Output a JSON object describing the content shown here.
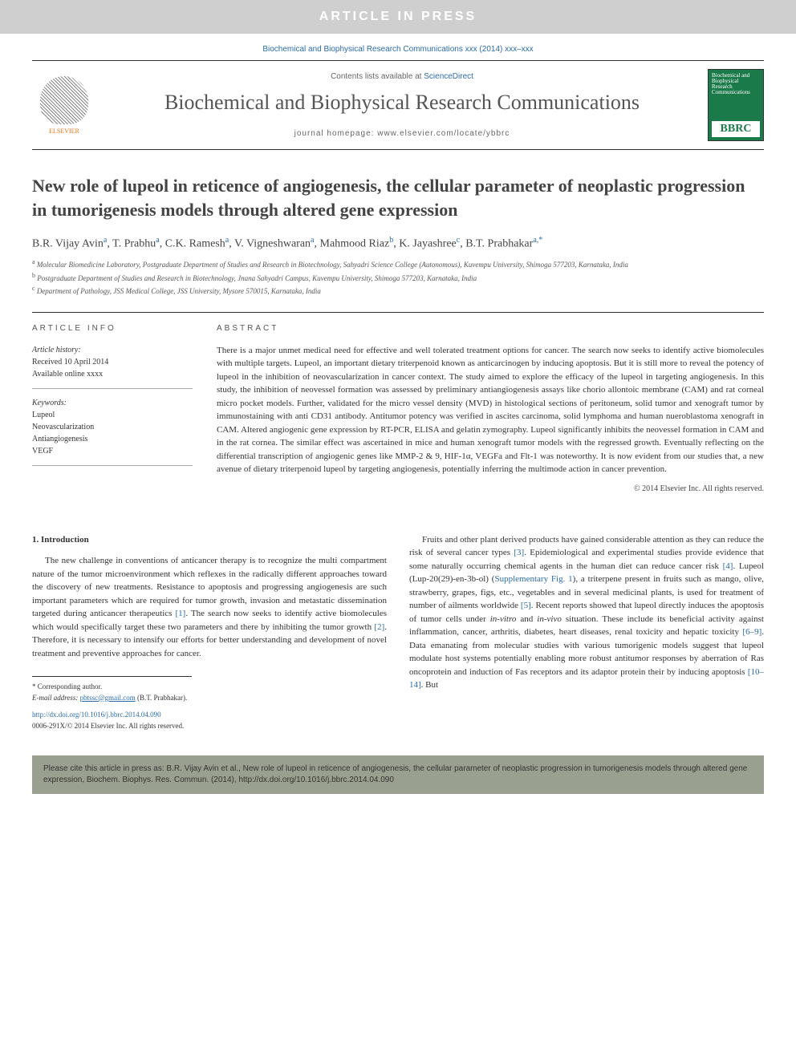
{
  "banner": "ARTICLE IN PRESS",
  "citation_top": "Biochemical and Biophysical Research Communications xxx (2014) xxx–xxx",
  "header": {
    "contents_prefix": "Contents lists available at ",
    "contents_link": "ScienceDirect",
    "journal": "Biochemical and Biophysical Research Communications",
    "homepage_prefix": "journal homepage: ",
    "homepage": "www.elsevier.com/locate/ybbrc",
    "elsevier_label": "ELSEVIER",
    "cover_label": "BBRC"
  },
  "title": "New role of lupeol in reticence of angiogenesis, the cellular parameter of neoplastic progression in tumorigenesis models through altered gene expression",
  "authors_html": "B.R. Vijay Avin<sup class='sup'>a</sup>, T. Prabhu<sup class='sup'>a</sup>, C.K. Ramesh<sup class='sup'>a</sup>, V. Vigneshwaran<sup class='sup'>a</sup>, Mahmood Riaz<sup class='sup'>b</sup>, K. Jayashree<sup class='sup'>c</sup>, B.T. Prabhakar<sup class='sup'>a,*</sup>",
  "affiliations": [
    {
      "sup": "a",
      "text": "Molecular Biomedicine Laboratory, Postgraduate Department of Studies and Research in Biotechnology, Sahyadri Science College (Autonomous), Kuvempu University, Shimoga 577203, Karnataka, India"
    },
    {
      "sup": "b",
      "text": "Postgraduate Department of Studies and Research in Biotechnology, Jnana Sahyadri Campus, Kuvempu University, Shimoga 577203, Karnataka, India"
    },
    {
      "sup": "c",
      "text": "Department of Pathology, JSS Medical College, JSS University, Mysore 570015, Karnataka, India"
    }
  ],
  "info": {
    "heading": "ARTICLE INFO",
    "history_label": "Article history:",
    "received": "Received 10 April 2014",
    "available": "Available online xxxx",
    "keywords_label": "Keywords:",
    "keywords": [
      "Lupeol",
      "Neovascularization",
      "Antiangiogenesis",
      "VEGF"
    ]
  },
  "abstract": {
    "heading": "ABSTRACT",
    "text": "There is a major unmet medical need for effective and well tolerated treatment options for cancer. The search now seeks to identify active biomolecules with multiple targets. Lupeol, an important dietary triterpenoid known as anticarcinogen by inducing apoptosis. But it is still more to reveal the potency of lupeol in the inhibition of neovascularization in cancer context. The study aimed to explore the efficacy of the lupeol in targeting angiogenesis. In this study, the inhibition of neovessel formation was assessed by preliminary antiangiogenesis assays like chorio allontoic membrane (CAM) and rat corneal micro pocket models. Further, validated for the micro vessel density (MVD) in histological sections of peritoneum, solid tumor and xenograft tumor by immunostaining with anti CD31 antibody. Antitumor potency was verified in ascites carcinoma, solid lymphoma and human nueroblastoma xenograft in CAM. Altered angiogenic gene expression by RT-PCR, ELISA and gelatin zymography. Lupeol significantly inhibits the neovessel formation in CAM and in the rat cornea. The similar effect was ascertained in mice and human xenograft tumor models with the regressed growth. Eventually reflecting on the differential transcription of angiogenic genes like MMP-2 & 9, HIF-1α, VEGFa and Flt-1 was noteworthy. It is now evident from our studies that, a new avenue of dietary triterpenoid lupeol by targeting angiogenesis, potentially inferring the multimode action in cancer prevention.",
    "copyright": "© 2014 Elsevier Inc. All rights reserved."
  },
  "intro": {
    "heading": "1. Introduction",
    "p1": "The new challenge in conventions of anticancer therapy is to recognize the multi compartment nature of the tumor microenvironment which reflexes in the radically different approaches toward the discovery of new treatments. Resistance to apoptosis and progressing angiogenesis are such important parameters which are required for tumor growth, invasion and metastatic dissemination targeted during anticancer therapeutics [1]. The search now seeks to identify active biomolecules which would specifically target these two parameters and there by inhibiting the tumor growth [2]. Therefore, it is necessary to intensify our efforts for better understanding and development of novel treatment and preventive approaches for cancer.",
    "p2": "Fruits and other plant derived products have gained considerable attention as they can reduce the risk of several cancer types [3]. Epidemiological and experimental studies provide evidence that some naturally occurring chemical agents in the human diet can reduce cancer risk [4]. Lupeol (Lup-20(29)-en-3b-ol) (Supplementary Fig. 1), a triterpene present in fruits such as mango, olive, strawberry, grapes, figs, etc., vegetables and in several medicinal plants, is used for treatment of number of ailments worldwide [5]. Recent reports showed that lupeol directly induces the apoptosis of tumor cells under in-vitro and in-vivo situation. These include its beneficial activity against inflammation, cancer, arthritis, diabetes, heart diseases, renal toxicity and hepatic toxicity [6–9]. Data emanating from molecular studies with various tumorigenic models suggest that lupeol modulate host systems potentially enabling more robust antitumor responses by aberration of Ras oncoprotein and induction of Fas receptors and its adaptor protein their by inducing apoptosis [10–14]. But"
  },
  "footnotes": {
    "corr": "* Corresponding author.",
    "email_label": "E-mail address: ",
    "email": "pbtssc@gmail.com",
    "email_suffix": " (B.T. Prabhakar).",
    "doi_url": "http://dx.doi.org/10.1016/j.bbrc.2014.04.090",
    "issn": "0006-291X/© 2014 Elsevier Inc. All rights reserved."
  },
  "bottom_citation": "Please cite this article in press as: B.R. Vijay Avin et al., New role of lupeol in reticence of angiogenesis, the cellular parameter of neoplastic progression in tumorigenesis models through altered gene expression, Biochem. Biophys. Res. Commun. (2014), http://dx.doi.org/10.1016/j.bbrc.2014.04.090",
  "colors": {
    "link": "#2b6cab",
    "banner_bg": "#d0cfd0",
    "orange": "#e67817",
    "cover_green": "#1a7a4a",
    "bottom_bg": "#9aa08f"
  }
}
